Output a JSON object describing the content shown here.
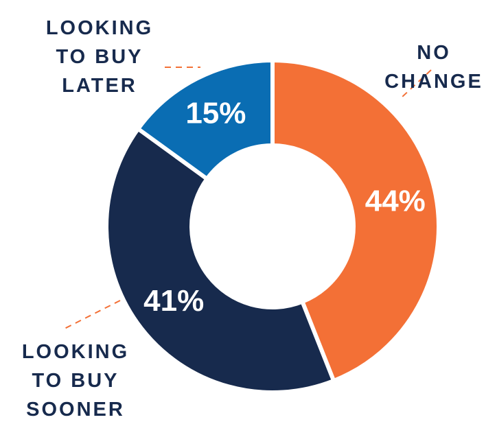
{
  "chart_data": {
    "type": "donut",
    "categories": [
      "NO CHANGE",
      "LOOKING TO BUY SOONER",
      "LOOKING TO BUY LATER"
    ],
    "values": [
      44,
      41,
      15
    ],
    "value_labels": [
      "44%",
      "41%",
      "15%"
    ],
    "colors": [
      "#f37036",
      "#172a4d",
      "#0a6db3"
    ]
  }
}
